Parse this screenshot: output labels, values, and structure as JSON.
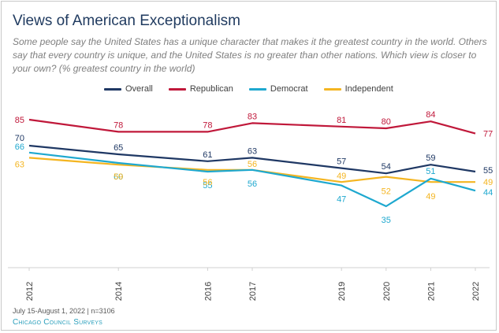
{
  "header": {
    "title": "Views of American Exceptionalism",
    "subtitle": "Some people say the United States has a unique character that makes it the greatest country in the world. Others say that every country is unique, and the United States is no greater than other nations. Which view is closer to your own? (% greatest country in the world)"
  },
  "footer": {
    "note": "July 15-August 1, 2022  | n=3106",
    "source": "Chicago Council Surveys"
  },
  "chart_data": {
    "type": "line",
    "title": "Views of American Exceptionalism",
    "xlabel": "",
    "ylabel": "% greatest country in the world",
    "ylim": [
      0,
      100
    ],
    "grid": false,
    "legend_position": "top",
    "x": [
      2012,
      2014,
      2016,
      2017,
      2019,
      2020,
      2021,
      2022
    ],
    "series": [
      {
        "name": "Overall",
        "color": "#1f3864",
        "values": [
          70,
          65,
          61,
          63,
          57,
          54,
          59,
          55
        ]
      },
      {
        "name": "Republican",
        "color": "#c0183a",
        "values": [
          85,
          78,
          78,
          83,
          81,
          80,
          84,
          77
        ]
      },
      {
        "name": "Democrat",
        "color": "#1ea8cf",
        "values": [
          66,
          60,
          55,
          56,
          47,
          35,
          51,
          44
        ]
      },
      {
        "name": "Independent",
        "color": "#f4b521",
        "values": [
          63,
          59,
          56,
          56,
          49,
          52,
          49,
          49
        ]
      }
    ]
  }
}
